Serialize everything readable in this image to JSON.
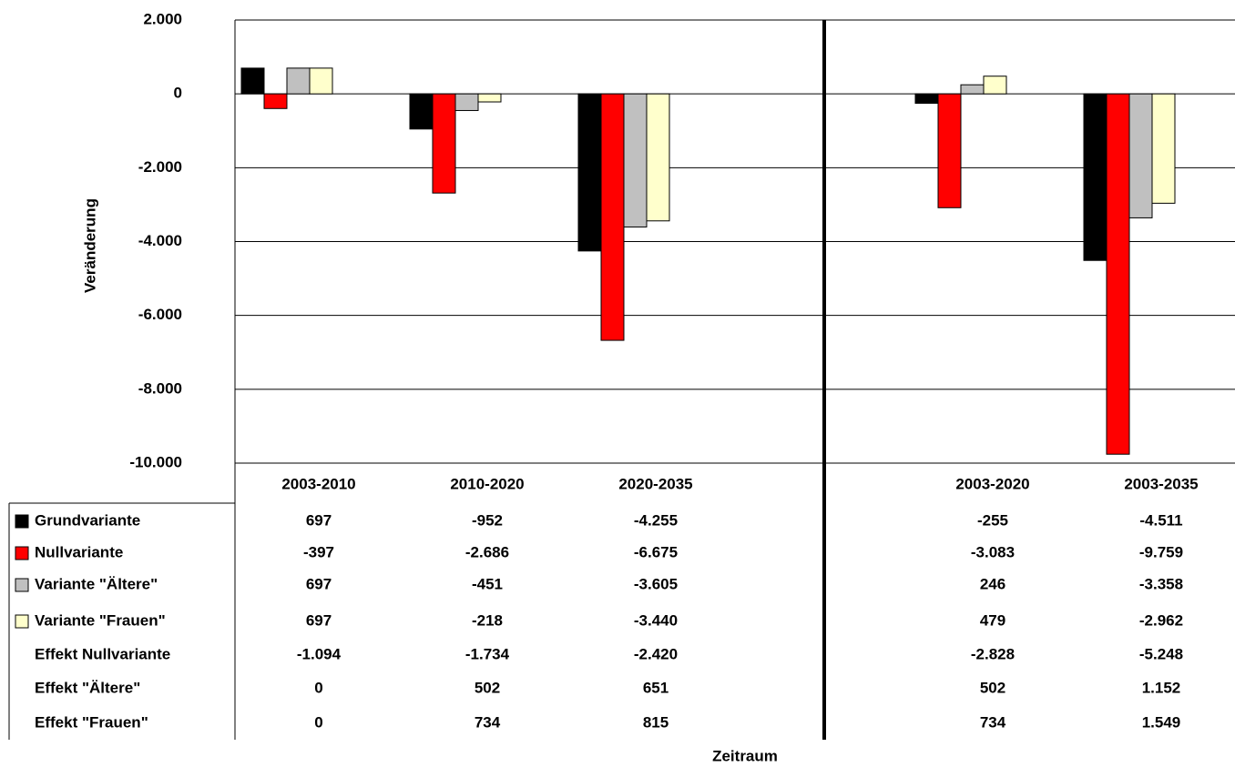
{
  "chart_data": {
    "type": "bar",
    "y_label": "Veränderung",
    "x_label": "Zeitraum",
    "categories": [
      "2003-2010",
      "2010-2020",
      "2020-2035",
      null,
      "2003-2020",
      "2003-2035"
    ],
    "ylim": [
      -10000,
      2000
    ],
    "yticks": [
      {
        "value": 2000,
        "label": "2.000"
      },
      0,
      {
        "value": -2000,
        "label": "-2.000"
      },
      {
        "value": -4000,
        "label": "-4.000"
      },
      {
        "value": -6000,
        "label": "-6.000"
      },
      {
        "value": -8000,
        "label": "-8.000"
      },
      {
        "value": -10000,
        "label": "-10.000"
      }
    ],
    "grid": true,
    "series": [
      {
        "name": "Grundvariante",
        "color": "#000000",
        "values": [
          697,
          -952,
          -4255,
          null,
          -255,
          -4511
        ],
        "value_labels": [
          "697",
          "-952",
          "-4.255",
          null,
          "-255",
          "-4.511"
        ]
      },
      {
        "name": "Nullvariante",
        "color": "#ff0000",
        "values": [
          -397,
          -2686,
          -6675,
          null,
          -3083,
          -9759
        ],
        "value_labels": [
          "-397",
          "-2.686",
          "-6.675",
          null,
          "-3.083",
          "-9.759"
        ]
      },
      {
        "name": "Variante \"Ältere\"",
        "color": "#c0c0c0",
        "values": [
          697,
          -451,
          -3605,
          null,
          246,
          -3358
        ],
        "value_labels": [
          "697",
          "-451",
          "-3.605",
          null,
          "246",
          "-3.358"
        ]
      },
      {
        "name": "Variante \"Frauen\"",
        "color": "#ffffcc",
        "values": [
          697,
          -218,
          -3440,
          null,
          479,
          -2962
        ],
        "value_labels": [
          "697",
          "-218",
          "-3.440",
          null,
          "479",
          "-2.962"
        ]
      }
    ],
    "table_rows": [
      {
        "name": "Effekt Nullvariante",
        "values": [
          -1094,
          -1734,
          -2420,
          null,
          -2828,
          -5248
        ],
        "value_labels": [
          "-1.094",
          "-1.734",
          "-2.420",
          null,
          "-2.828",
          "-5.248"
        ]
      },
      {
        "name": "Effekt \"Ältere\"",
        "values": [
          0,
          502,
          651,
          null,
          502,
          1152
        ],
        "value_labels": [
          "0",
          "502",
          "651",
          null,
          "502",
          "1.152"
        ]
      },
      {
        "name": "Effekt \"Frauen\"",
        "values": [
          0,
          734,
          815,
          null,
          734,
          1549
        ],
        "value_labels": [
          "0",
          "734",
          "815",
          null,
          "734",
          "1.549"
        ]
      }
    ]
  }
}
